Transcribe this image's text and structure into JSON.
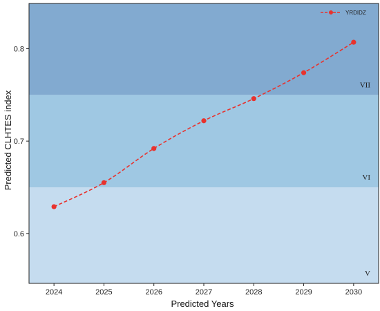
{
  "chart_data": {
    "type": "line",
    "title": "",
    "xlabel": "Predicted Years",
    "ylabel": "Predicted CLHTES index",
    "x": [
      2024,
      2025,
      2026,
      2027,
      2028,
      2029,
      2030
    ],
    "x_ticks": [
      "2024",
      "2025",
      "2026",
      "2027",
      "2028",
      "2029",
      "2030"
    ],
    "xlim": [
      2023.5,
      2030.5
    ],
    "y_ticks": [
      "0.6",
      "0.7",
      "0.8"
    ],
    "ylim": [
      0.546,
      0.849
    ],
    "grid": false,
    "series": [
      {
        "name": "YRDIDZ",
        "color": "#e8322d",
        "style": "dashed-with-markers",
        "values": [
          0.629,
          0.655,
          0.692,
          0.722,
          0.746,
          0.774,
          0.807
        ]
      }
    ],
    "legend": {
      "position": "top-right",
      "entries": [
        "YRDIDZ"
      ]
    },
    "bands": [
      {
        "label": "V",
        "from": 0.546,
        "to": 0.65,
        "color": "#c5dcef"
      },
      {
        "label": "VI",
        "from": 0.65,
        "to": 0.75,
        "color": "#9fc8e3"
      },
      {
        "label": "VII",
        "from": 0.75,
        "to": 0.849,
        "color": "#82aad0"
      }
    ]
  }
}
